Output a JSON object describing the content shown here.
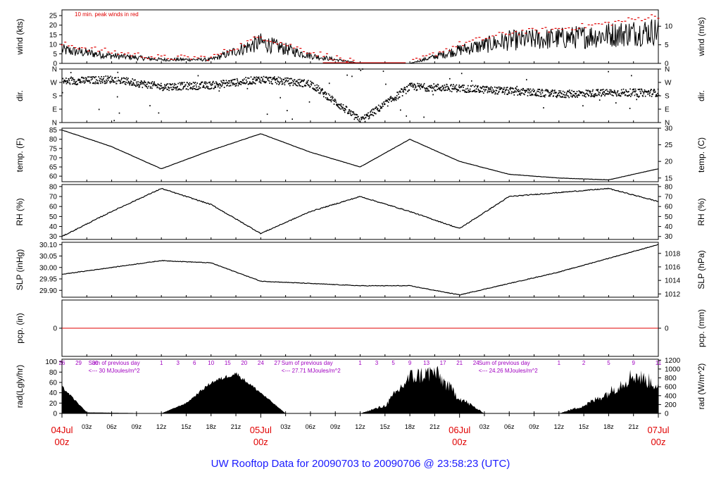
{
  "title": "UW Rooftop Data for 20090703  to  20090706 @ 23:58:23  (UTC)",
  "colors": {
    "text": "#1a1aff",
    "peak": "#e00000",
    "pcp": "#e00000",
    "sum": "#a000c0",
    "date": "#e00000",
    "data": "#000000"
  },
  "panels": {
    "wind": {
      "left_label": "wind (kts)",
      "right_label": "wind (m/s)",
      "left_ticks": [
        "0",
        "5",
        "10",
        "15",
        "20",
        "25"
      ],
      "right_ticks": [
        "0",
        "5",
        "10"
      ],
      "annotation": "10 min. peak winds in red"
    },
    "dir": {
      "left_label": "dir.",
      "right_label": "dir.",
      "ticks": [
        "N",
        "W",
        "S",
        "E",
        "N"
      ]
    },
    "temp": {
      "left_label": "temp. (F)",
      "right_label": "temp. (C)",
      "left_ticks": [
        "60",
        "65",
        "70",
        "75",
        "80",
        "85"
      ],
      "right_ticks": [
        "15",
        "20",
        "25",
        "30"
      ]
    },
    "rh": {
      "left_label": "RH (%)",
      "right_label": "RH (%)",
      "left_ticks": [
        "30",
        "40",
        "50",
        "60",
        "70",
        "80"
      ],
      "right_ticks": [
        "30",
        "40",
        "50",
        "60",
        "70",
        "80"
      ]
    },
    "slp": {
      "left_label": "SLP (inHg)",
      "right_label": "SLP (hPa)",
      "left_ticks": [
        "29.90",
        "29.95",
        "30.00",
        "30.05",
        "30.10"
      ],
      "right_ticks": [
        "1012",
        "1014",
        "1016",
        "1018"
      ]
    },
    "pcp": {
      "left_label": "pcp. (in)",
      "right_label": "pcp. (mm)",
      "left_ticks": [
        "0"
      ],
      "right_ticks": [
        "0"
      ]
    },
    "rad": {
      "left_label": "rad(Lgly/hr)",
      "right_label": "rad (W/m^2)",
      "left_ticks": [
        "0",
        "20",
        "40",
        "60",
        "80",
        "100"
      ],
      "right_ticks": [
        "0",
        "200",
        "400",
        "600",
        "800",
        "1000",
        "1200"
      ],
      "sums": [
        {
          "title": "Sum of previous day",
          "value": "<--- 30 MJoules/m^2"
        },
        {
          "title": "Sum of previous day",
          "value": "<--- 27.71 MJoules/m^2"
        },
        {
          "title": "Sum of previous day",
          "value": "<--- 24.26 MJoules/m^2"
        }
      ],
      "cum_labels": [
        [
          "26",
          "29",
          "30"
        ],
        [
          "1",
          "3",
          "6",
          "10",
          "15",
          "20",
          "24",
          "27"
        ],
        [
          "1",
          "3",
          "5",
          "9",
          "13",
          "17",
          "21",
          "24"
        ],
        [
          "1",
          "2",
          "5",
          "9",
          "11"
        ]
      ]
    }
  },
  "x_axis": {
    "hour_labels": [
      "03z",
      "06z",
      "09z",
      "12z",
      "15z",
      "18z",
      "21z"
    ],
    "dates": [
      {
        "day": "04Jul",
        "hour": "00z"
      },
      {
        "day": "05Jul",
        "hour": "00z"
      },
      {
        "day": "06Jul",
        "hour": "00z"
      },
      {
        "day": "07Jul",
        "hour": "00z"
      }
    ]
  },
  "chart_data": [
    {
      "type": "line",
      "title": "wind",
      "xlabel": "",
      "ylabel": "wind (kts)",
      "ylim": [
        0,
        28
      ],
      "series": [
        {
          "name": "wind",
          "x": [
            0,
            6,
            12,
            18,
            24,
            30,
            36,
            42,
            48,
            54,
            60,
            66,
            72
          ],
          "values": [
            7,
            4,
            2,
            2,
            11,
            4,
            0,
            0,
            7,
            12,
            13,
            15,
            17
          ]
        },
        {
          "name": "10 min. peak winds in red",
          "x": [
            0,
            6,
            12,
            18,
            24,
            30,
            36,
            42,
            48,
            54,
            60,
            66,
            72
          ],
          "values": [
            10,
            6,
            3,
            3,
            14,
            6,
            0,
            0,
            10,
            16,
            18,
            21,
            25
          ]
        }
      ]
    },
    {
      "type": "scatter",
      "title": "dir.",
      "ylabel": "dir.",
      "ylim": [
        0,
        360
      ],
      "series": [
        {
          "name": "dir",
          "x": [
            0,
            6,
            12,
            18,
            24,
            30,
            36,
            42,
            48,
            54,
            60,
            66,
            72
          ],
          "values": [
            275,
            290,
            240,
            250,
            290,
            260,
            10,
            240,
            230,
            210,
            190,
            200,
            200
          ]
        }
      ]
    },
    {
      "type": "line",
      "title": "temp.",
      "ylabel": "temp. (F)",
      "ylim": [
        57,
        86
      ],
      "series": [
        {
          "name": "temp",
          "x": [
            0,
            6,
            12,
            18,
            24,
            30,
            36,
            42,
            48,
            54,
            60,
            66,
            72
          ],
          "values": [
            85,
            76,
            64,
            74,
            83,
            73,
            65,
            80,
            68,
            61,
            59,
            58,
            64
          ]
        }
      ]
    },
    {
      "type": "line",
      "title": "RH",
      "ylabel": "RH (%)",
      "ylim": [
        27,
        82
      ],
      "series": [
        {
          "name": "RH",
          "x": [
            0,
            6,
            12,
            18,
            24,
            30,
            36,
            42,
            48,
            54,
            60,
            66,
            72
          ],
          "values": [
            30,
            55,
            78,
            62,
            33,
            55,
            70,
            55,
            38,
            70,
            74,
            78,
            65
          ]
        }
      ]
    },
    {
      "type": "line",
      "title": "SLP",
      "ylabel": "SLP (inHg)",
      "ylim": [
        29.87,
        30.11
      ],
      "series": [
        {
          "name": "SLP",
          "x": [
            0,
            6,
            12,
            18,
            24,
            30,
            36,
            42,
            48,
            54,
            60,
            66,
            72
          ],
          "values": [
            29.97,
            30.0,
            30.03,
            30.02,
            29.94,
            29.93,
            29.92,
            29.92,
            29.88,
            29.93,
            29.98,
            30.04,
            30.1
          ]
        }
      ]
    },
    {
      "type": "line",
      "title": "pcp.",
      "ylabel": "pcp. (in)",
      "ylim": [
        -1,
        1
      ],
      "series": [
        {
          "name": "pcp",
          "x": [
            0,
            72
          ],
          "values": [
            0,
            0
          ]
        }
      ]
    },
    {
      "type": "area",
      "title": "rad",
      "ylabel": "rad(Lgly/hr)",
      "ylim": [
        0,
        105
      ],
      "series": [
        {
          "name": "rad",
          "x": [
            0,
            3,
            12,
            15,
            18,
            21,
            24,
            27,
            36,
            39,
            42,
            45,
            48,
            51,
            60,
            63,
            66,
            69,
            72
          ],
          "values": [
            52,
            2,
            0,
            20,
            60,
            78,
            40,
            0,
            0,
            15,
            70,
            80,
            30,
            0,
            0,
            15,
            40,
            75,
            55
          ]
        }
      ]
    }
  ]
}
